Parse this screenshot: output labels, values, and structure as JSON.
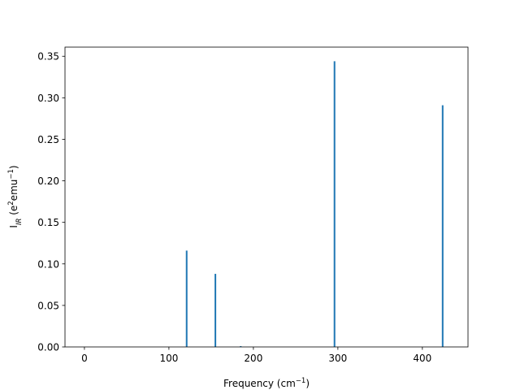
{
  "chart_data": {
    "type": "bar",
    "x": [
      121,
      155,
      185,
      296,
      424
    ],
    "values": [
      0.116,
      0.088,
      0.001,
      0.344,
      0.291
    ],
    "color": "#1f77b4",
    "xlim": [
      -23,
      454
    ],
    "xticks": [
      0,
      100,
      200,
      300,
      400
    ],
    "ylim": [
      0,
      0.361
    ],
    "yticks": [
      {
        "value": 0,
        "label": "0.00"
      },
      {
        "value": 0.05,
        "label": "0.05"
      },
      {
        "value": 0.1,
        "label": "0.10"
      },
      {
        "value": 0.15,
        "label": "0.15"
      },
      {
        "value": 0.2,
        "label": "0.20"
      },
      {
        "value": 0.25,
        "label": "0.25"
      },
      {
        "value": 0.3,
        "label": "0.30"
      },
      {
        "value": 0.35,
        "label": "0.35"
      }
    ],
    "xlabel": [
      "Frequency (cm",
      "−1",
      ")"
    ],
    "ylabel": [
      "I",
      "IR",
      " (e",
      "2",
      "emu",
      "−1",
      ")"
    ],
    "grid": false
  }
}
